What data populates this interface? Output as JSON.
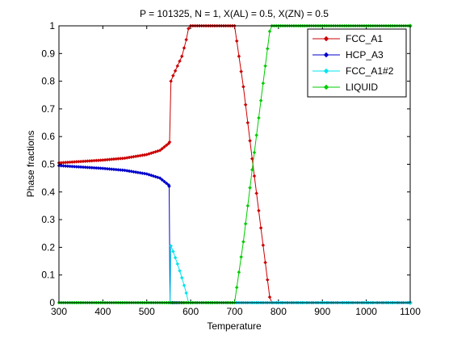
{
  "chart_data": {
    "type": "line",
    "title": "P = 101325, N = 1, X(AL) = 0.5, X(ZN) = 0.5",
    "xlabel": "Temperature",
    "ylabel": "Phase fractions",
    "xlim": [
      300,
      1100
    ],
    "ylim": [
      0,
      1
    ],
    "xticks": [
      "300",
      "400",
      "500",
      "600",
      "700",
      "800",
      "900",
      "1000",
      "1100"
    ],
    "yticks": [
      "0",
      "0.1",
      "0.2",
      "0.3",
      "0.4",
      "0.5",
      "0.6",
      "0.7",
      "0.8",
      "0.9",
      "1"
    ],
    "grid": false,
    "legend_position": "top-right",
    "series": [
      {
        "name": "FCC_A1",
        "color": "#cc0000",
        "marker": "diamond",
        "x": [
          300,
          350,
          400,
          450,
          500,
          530,
          550,
          552,
          555,
          560,
          570,
          580,
          590,
          595,
          600,
          650,
          700,
          720,
          740,
          760,
          780,
          785,
          800,
          900,
          1000,
          1100
        ],
        "y": [
          0.505,
          0.51,
          0.515,
          0.522,
          0.535,
          0.55,
          0.575,
          0.58,
          0.8,
          0.82,
          0.855,
          0.89,
          0.95,
          0.99,
          1.0,
          1.0,
          1.0,
          0.78,
          0.52,
          0.27,
          0.02,
          0.0,
          0.0,
          0.0,
          0.0,
          0.0
        ]
      },
      {
        "name": "HCP_A3",
        "color": "#0000cc",
        "marker": "diamond",
        "x": [
          300,
          350,
          400,
          450,
          500,
          530,
          550,
          551,
          553,
          600,
          700,
          800,
          900,
          1000,
          1100
        ],
        "y": [
          0.495,
          0.49,
          0.485,
          0.478,
          0.465,
          0.45,
          0.425,
          0.42,
          0.0,
          0.0,
          0.0,
          0.0,
          0.0,
          0.0,
          0.0
        ]
      },
      {
        "name": "FCC_A1#2",
        "color": "#00e5ee",
        "marker": "diamond",
        "x": [
          300,
          400,
          500,
          550,
          553,
          555,
          560,
          570,
          580,
          590,
          595,
          600,
          700,
          800,
          900,
          1000,
          1100
        ],
        "y": [
          0.0,
          0.0,
          0.0,
          0.0,
          0.0,
          0.205,
          0.185,
          0.14,
          0.09,
          0.035,
          0.0,
          0.0,
          0.0,
          0.0,
          0.0,
          0.0,
          0.0
        ]
      },
      {
        "name": "LIQUID",
        "color": "#00cc00",
        "marker": "diamond",
        "x": [
          300,
          400,
          500,
          600,
          690,
          700,
          720,
          740,
          760,
          780,
          785,
          800,
          900,
          1000,
          1100
        ],
        "y": [
          0.0,
          0.0,
          0.0,
          0.0,
          0.0,
          0.0,
          0.22,
          0.48,
          0.73,
          0.98,
          1.0,
          1.0,
          1.0,
          1.0,
          1.0
        ]
      }
    ]
  }
}
